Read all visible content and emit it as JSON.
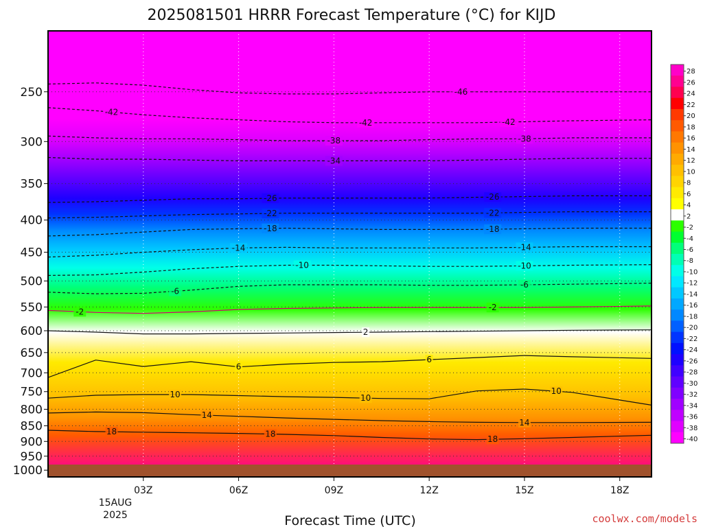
{
  "chart_data": {
    "type": "heatmap",
    "title": "2025081501 HRRR Forecast Temperature (°C) for KIJD",
    "xlabel": "Forecast Time (UTC)",
    "ylabel": "",
    "x_ticks": [
      {
        "hour": 3,
        "label": "03Z"
      },
      {
        "hour": 6,
        "label": "06Z"
      },
      {
        "hour": 9,
        "label": "09Z"
      },
      {
        "hour": 12,
        "label": "12Z"
      },
      {
        "hour": 15,
        "label": "15Z"
      },
      {
        "hour": 18,
        "label": "18Z"
      }
    ],
    "x_sublabels": [
      "15AUG",
      "2025"
    ],
    "xlim_hours": [
      0,
      19
    ],
    "y_ticks": [
      250,
      300,
      350,
      400,
      450,
      500,
      550,
      600,
      650,
      700,
      750,
      800,
      850,
      900,
      950,
      1000
    ],
    "ylim_hPa": [
      200,
      1025
    ],
    "y_scale": "log",
    "grid": true,
    "colorbar_labels": [
      28,
      26,
      24,
      22,
      20,
      18,
      16,
      14,
      12,
      10,
      8,
      6,
      4,
      2,
      -2,
      -4,
      -6,
      -8,
      -10,
      -12,
      -14,
      -16,
      -18,
      -20,
      -22,
      -24,
      -26,
      -28,
      -30,
      -32,
      -34,
      -36,
      -38,
      -40
    ],
    "colorbar_colors": [
      "#ff00c8",
      "#ff0090",
      "#ff0050",
      "#ff0000",
      "#ff3a00",
      "#ff5a00",
      "#ff7800",
      "#ff9200",
      "#ffaa00",
      "#ffc000",
      "#ffd400",
      "#ffea00",
      "#ffff00",
      "#ffffff",
      "#2cff00",
      "#00ff30",
      "#00ff7a",
      "#00ffb4",
      "#00ffe8",
      "#00e8ff",
      "#00c8ff",
      "#00a8ff",
      "#0088ff",
      "#0060ff",
      "#0034ff",
      "#0010ff",
      "#1e00ff",
      "#4000ff",
      "#6000ff",
      "#8000ff",
      "#a000ff",
      "#c000ff",
      "#e000ff",
      "#ff00ff"
    ],
    "isotherms": [
      {
        "value": -46,
        "label": "-46",
        "pressure": [
          243,
          242,
          244,
          248,
          251,
          252,
          252,
          251,
          250,
          250,
          250,
          250,
          250
        ],
        "labels_at": [
          13
        ]
      },
      {
        "value": -42,
        "label": "-42",
        "pressure": [
          265,
          268,
          272,
          275,
          277,
          279,
          280,
          280,
          280,
          280,
          279,
          278,
          277
        ],
        "labels_at": [
          2,
          10,
          14.5
        ]
      },
      {
        "value": -38,
        "label": "-38",
        "pressure": [
          294,
          296,
          297,
          297,
          298,
          299,
          299,
          299,
          298,
          297,
          297,
          296,
          296
        ],
        "labels_at": [
          9,
          15
        ]
      },
      {
        "value": -34,
        "label": "-34",
        "pressure": [
          318,
          320,
          320,
          321,
          322,
          322,
          322,
          322,
          322,
          321,
          320,
          319,
          319
        ],
        "labels_at": [
          9
        ]
      },
      {
        "value": -26,
        "label": "-26",
        "pressure": [
          375,
          374,
          372,
          370,
          370,
          369,
          369,
          369,
          369,
          368,
          367,
          366,
          366
        ],
        "labels_at": [
          7,
          14
        ]
      },
      {
        "value": -22,
        "label": "-22",
        "pressure": [
          397,
          396,
          394,
          392,
          391,
          390,
          390,
          390,
          390,
          390,
          389,
          388,
          388
        ],
        "labels_at": [
          7,
          14
        ]
      },
      {
        "value": -18,
        "label": "-18",
        "pressure": [
          424,
          422,
          418,
          414,
          413,
          412,
          413,
          414,
          414,
          414,
          413,
          412,
          412
        ],
        "labels_at": [
          7,
          14
        ]
      },
      {
        "value": -14,
        "label": "-14",
        "pressure": [
          458,
          455,
          450,
          446,
          443,
          442,
          443,
          443,
          443,
          443,
          442,
          441,
          441
        ],
        "labels_at": [
          6,
          15
        ]
      },
      {
        "value": -10,
        "label": "-10",
        "pressure": [
          490,
          489,
          484,
          478,
          474,
          472,
          472,
          473,
          474,
          474,
          473,
          472,
          471
        ],
        "labels_at": [
          8,
          15
        ]
      },
      {
        "value": -6,
        "label": "-6",
        "pressure": [
          521,
          524,
          523,
          517,
          510,
          507,
          507,
          507,
          508,
          508,
          507,
          506,
          504
        ],
        "labels_at": [
          4,
          15
        ]
      },
      {
        "value": -2,
        "label": "-2",
        "pressure": [
          557,
          561,
          563,
          560,
          555,
          553,
          552,
          551,
          551,
          551,
          551,
          550,
          548
        ],
        "labels_at": [
          1,
          14
        ]
      },
      {
        "value": 2,
        "label": "2",
        "pressure": [
          600,
          603,
          607,
          607,
          606,
          605,
          604,
          603,
          602,
          601,
          600,
          599,
          598
        ],
        "labels_at": [
          10
        ]
      },
      {
        "value": 6,
        "label": "6",
        "pressure": [
          712,
          668,
          684,
          672,
          685,
          678,
          674,
          672,
          667,
          662,
          657,
          660,
          664
        ],
        "labels_at": [
          6,
          12
        ]
      },
      {
        "value": 10,
        "label": "10",
        "pressure": [
          768,
          760,
          758,
          758,
          761,
          764,
          766,
          769,
          770,
          748,
          743,
          752,
          788
        ],
        "labels_at": [
          4,
          10,
          16
        ]
      },
      {
        "value": 14,
        "label": "14",
        "pressure": [
          811,
          808,
          810,
          816,
          821,
          826,
          830,
          834,
          837,
          839,
          840,
          840,
          839
        ],
        "labels_at": [
          5,
          15
        ]
      },
      {
        "value": 18,
        "label": "18",
        "pressure": [
          864,
          868,
          870,
          872,
          874,
          877,
          881,
          887,
          892,
          894,
          891,
          887,
          880
        ],
        "labels_at": [
          2,
          7,
          14
        ]
      }
    ],
    "isotherm_hours": [
      0,
      1.5,
      3,
      4.5,
      6,
      7.5,
      9,
      10.5,
      12,
      13.5,
      15,
      16.5,
      19
    ],
    "ground_color": "#a0522d"
  },
  "credit": "coolwx.com/models"
}
